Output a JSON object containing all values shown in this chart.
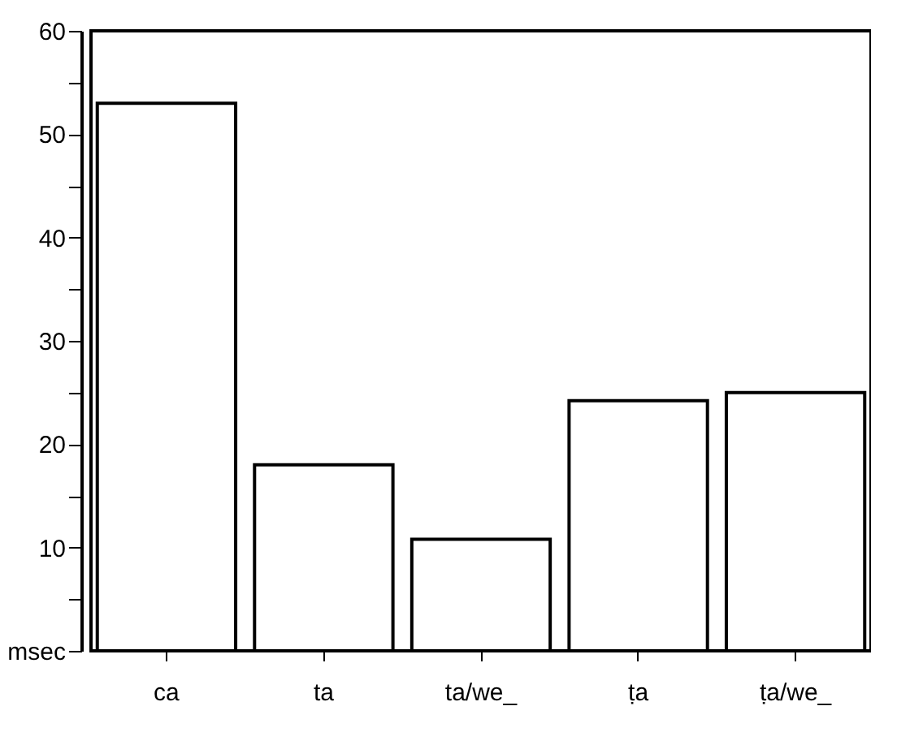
{
  "chart_data": {
    "type": "bar",
    "categories": [
      "ca",
      "ta",
      "ta/we_",
      "ṭa",
      "ṭa/we_"
    ],
    "values": [
      53,
      18,
      10.8,
      24.2,
      25
    ],
    "color": "#ffffff",
    "ylim": [
      0,
      60
    ],
    "yticks": [
      {
        "value": 0,
        "label": "msec"
      },
      {
        "value": 5,
        "label": null
      },
      10,
      {
        "value": 15,
        "label": null
      },
      20,
      {
        "value": 25,
        "label": null
      },
      30,
      {
        "value": 35,
        "label": null
      },
      40,
      {
        "value": 45,
        "label": null
      },
      50,
      {
        "value": 55,
        "label": null
      },
      60
    ],
    "grid": false
  }
}
